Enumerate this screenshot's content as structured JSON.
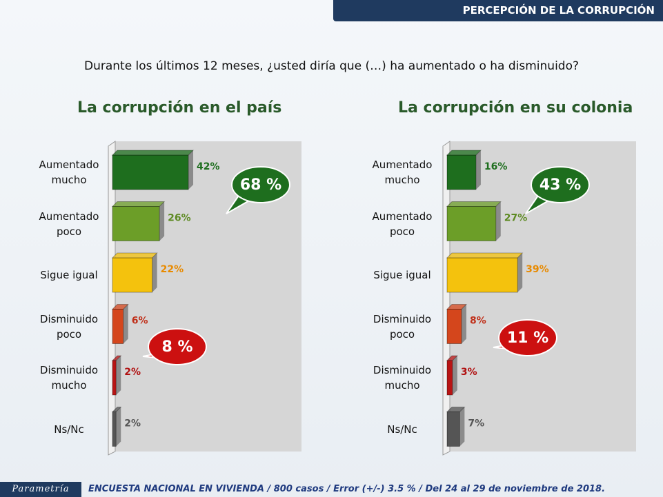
{
  "header": "PERCEPCIÓN DE LA CORRUPCIÓN",
  "question": "Durante los últimos 12 meses, ¿usted diría que (…) ha aumentado o ha disminuido?",
  "footer": {
    "logo": "Parametría",
    "note": "ENCUESTA NACIONAL EN VIVIENDA / 800 casos / Error (+/-) 3.5 % / Del 24 al 29 de noviembre de 2018."
  },
  "chart_data": [
    {
      "type": "barh",
      "title": "La corrupción en el país",
      "categories": [
        "Aumentado mucho",
        "Aumentado poco",
        "Sigue igual",
        "Disminuido poco",
        "Disminuido mucho",
        "Ns/Nc"
      ],
      "values": [
        42,
        26,
        22,
        6,
        2,
        2
      ],
      "value_labels": [
        "42%",
        "26%",
        "22%",
        "6%",
        "2%",
        "2%"
      ],
      "colors": [
        "#1e6e1e",
        "#6c9e28",
        "#f4c20d",
        "#d4461c",
        "#b81414",
        "#555555"
      ],
      "label_colors": [
        "#1e6e1e",
        "#5d8a22",
        "#e88a00",
        "#c0301a",
        "#b01010",
        "#555555"
      ],
      "xlim": [
        0,
        100
      ],
      "annotations": [
        "68 %",
        "8 %"
      ]
    },
    {
      "type": "barh",
      "title": "La corrupción en su colonia",
      "categories": [
        "Aumentado mucho",
        "Aumentado poco",
        "Sigue igual",
        "Disminuido poco",
        "Disminuido mucho",
        "Ns/Nc"
      ],
      "values": [
        16,
        27,
        39,
        8,
        3,
        7
      ],
      "value_labels": [
        "16%",
        "27%",
        "39%",
        "8%",
        "3%",
        "7%"
      ],
      "colors": [
        "#1e6e1e",
        "#6c9e28",
        "#f4c20d",
        "#d4461c",
        "#b81414",
        "#555555"
      ],
      "label_colors": [
        "#1e6e1e",
        "#5d8a22",
        "#e88a00",
        "#c0301a",
        "#b01010",
        "#555555"
      ],
      "xlim": [
        0,
        100
      ],
      "annotations": [
        "43 %",
        "11 %"
      ]
    }
  ]
}
